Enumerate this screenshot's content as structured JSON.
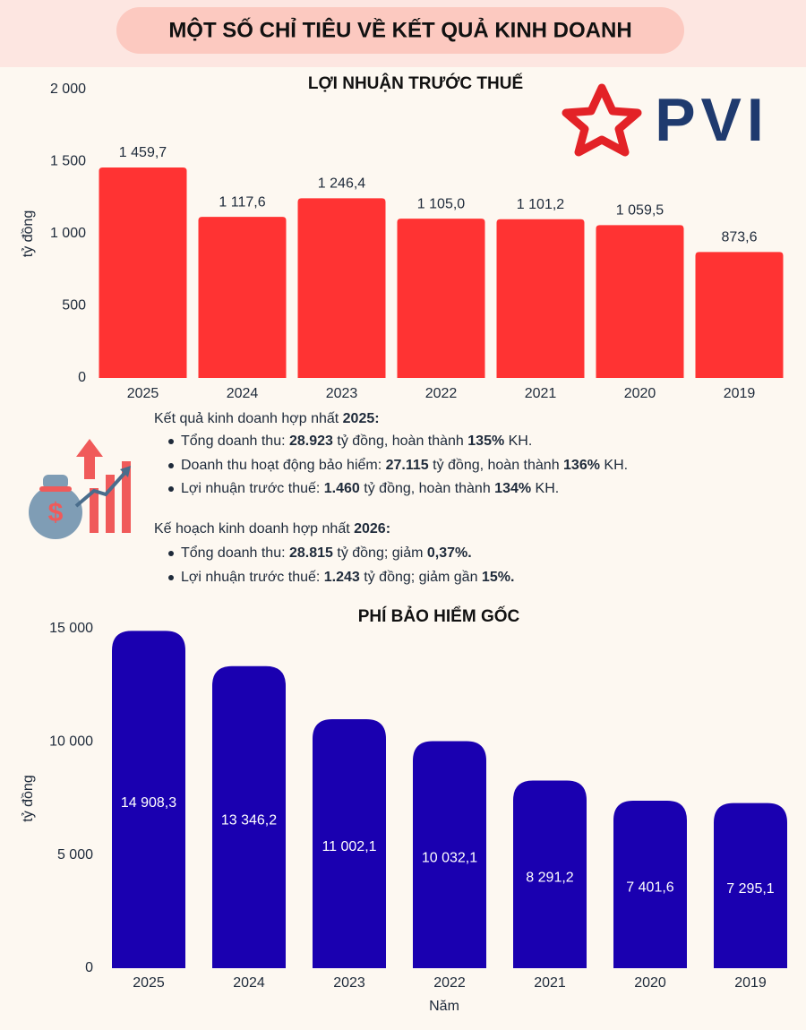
{
  "header": {
    "title": "MỘT SỐ CHỈ TIÊU VỀ KẾT QUẢ KINH DOANH",
    "logo": "PVI"
  },
  "chart_data": [
    {
      "type": "bar",
      "title": "LỢI NHUẬN TRƯỚC THUẾ",
      "y_label": "tỷ đồng",
      "categories": [
        "2025",
        "2024",
        "2023",
        "2022",
        "2021",
        "2020",
        "2019"
      ],
      "values": [
        1459.7,
        1117.6,
        1246.4,
        1105.0,
        1101.2,
        1059.5,
        873.6
      ],
      "value_labels": [
        "1 459,7",
        "1 117,6",
        "1 246,4",
        "1 105,0",
        "1 101,2",
        "1 059,5",
        "873,6"
      ],
      "color": "#ff3333",
      "ylim": [
        0,
        2000
      ],
      "yticks": [
        0,
        500,
        {
          "value": 1000,
          "label": "1 000"
        },
        {
          "value": 1500,
          "label": "1 500"
        },
        {
          "value": 2000,
          "label": "2 000"
        }
      ]
    },
    {
      "type": "bar",
      "title": "PHÍ BẢO HIỂM GỐC",
      "x_label": "Năm",
      "y_label": "tỷ đồng",
      "categories": [
        "2025",
        "2024",
        "2023",
        "2022",
        "2021",
        "2020",
        "2019"
      ],
      "values": [
        14908.3,
        13346.2,
        11002.1,
        10032.1,
        8291.2,
        7401.6,
        7295.1
      ],
      "value_labels": [
        "14 908,3",
        "13 346,2",
        "11 002,1",
        "10 032,1",
        "8 291,2",
        "7 401,6",
        "7 295,1"
      ],
      "color": "#1a00b0",
      "ylim": [
        0,
        15000
      ],
      "yticks": [
        0,
        {
          "value": 5000,
          "label": "5 000"
        },
        {
          "value": 10000,
          "label": "10 000"
        },
        {
          "value": 15000,
          "label": "15 000"
        }
      ]
    }
  ],
  "summary": {
    "results": {
      "heading": [
        "Kết quả kinh doanh hợp nhất ",
        "2025:"
      ],
      "items": [
        [
          "Tổng doanh thu: ",
          "28.923",
          " tỷ đồng, hoàn thành ",
          "135%",
          " KH."
        ],
        [
          "Doanh thu hoạt động bảo hiểm: ",
          "27.115",
          " tỷ đồng, hoàn thành ",
          "136%",
          " KH."
        ],
        [
          "Lợi nhuận trước thuế: ",
          "1.460",
          " tỷ đồng, hoàn thành ",
          "134%",
          " KH."
        ]
      ]
    },
    "plan": {
      "heading": [
        "Kế hoạch kinh doanh hợp nhất ",
        "2026:"
      ],
      "items": [
        [
          "Tổng doanh thu: ",
          "28.815",
          " tỷ đồng; giảm ",
          "0,37%."
        ],
        [
          "Lợi nhuận trước thuế: ",
          "1.243",
          " tỷ đồng; giảm gần ",
          "15%."
        ]
      ]
    }
  }
}
